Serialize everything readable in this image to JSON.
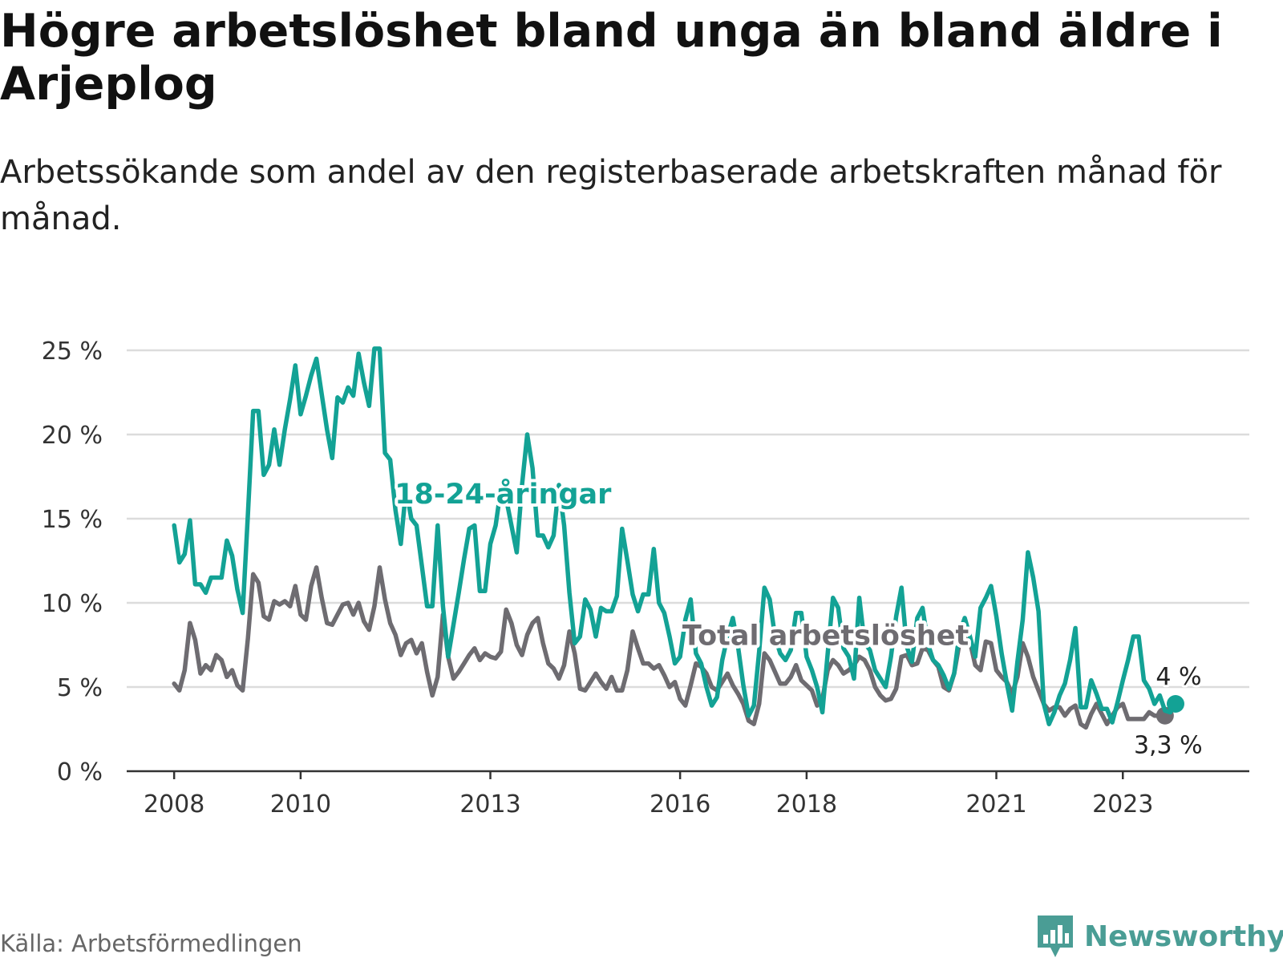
{
  "title": "Högre arbetslöshet bland unga än bland äldre i Arjeplog",
  "subtitle": "Arbetssökande som andel av den registerbaserade arbetskraften månad för månad.",
  "source": "Källa: Arbetsförmedlingen",
  "brand": {
    "name": "Newsworthy",
    "icon": "bar-chart-icon",
    "color": "#4a9d95"
  },
  "colors": {
    "youth": "#13a295",
    "total": "#6e6c71",
    "grid": "#dcdcdc",
    "axis": "#333333"
  },
  "chart_data": {
    "type": "line",
    "title": "Högre arbetslöshet bland unga än bland äldre i Arjeplog",
    "xlabel": "",
    "ylabel": "",
    "x_start": 2008.0,
    "x_step_months": 1,
    "xlim": [
      2007.25,
      2025.0
    ],
    "ylim": [
      0,
      25
    ],
    "y_ticks": [
      0,
      5,
      10,
      15,
      20,
      25
    ],
    "y_tick_labels": [
      "0 %",
      "5 %",
      "10 %",
      "15 %",
      "20 %",
      "25 %"
    ],
    "x_ticks": [
      2008,
      2010,
      2013,
      2016,
      2018,
      2021,
      2023
    ],
    "x_tick_labels": [
      "2008",
      "2010",
      "2013",
      "2016",
      "2018",
      "2021",
      "2023"
    ],
    "grid": true,
    "series": [
      {
        "name": "18-24-åringar",
        "label": "18-24-åringar",
        "color_key": "youth",
        "label_x": 2013.2,
        "label_y": 15.9,
        "values": [
          14.6,
          12.4,
          12.9,
          14.9,
          11.1,
          11.1,
          10.6,
          11.5,
          11.5,
          11.5,
          13.7,
          12.8,
          10.8,
          9.4,
          15.3,
          21.4,
          21.4,
          17.6,
          18.2,
          20.3,
          18.2,
          20.3,
          22.1,
          24.1,
          21.2,
          22.3,
          23.5,
          24.5,
          22.4,
          20.3,
          18.6,
          22.2,
          21.9,
          22.8,
          22.3,
          24.8,
          23.1,
          21.7,
          25.1,
          25.1,
          18.9,
          18.5,
          15.5,
          13.5,
          16.8,
          15.0,
          14.6,
          12.2,
          9.8,
          9.8,
          14.6,
          9.8,
          6.8,
          8.7,
          10.6,
          12.6,
          14.4,
          14.6,
          10.7,
          10.7,
          13.5,
          14.6,
          16.8,
          16.2,
          14.6,
          13.0,
          17.0,
          20.0,
          18.0,
          14.0,
          14.0,
          13.3,
          14.0,
          17.0,
          14.6,
          10.6,
          7.6,
          8.0,
          10.2,
          9.6,
          8.0,
          9.7,
          9.5,
          9.5,
          10.4,
          14.4,
          12.5,
          10.5,
          9.5,
          10.5,
          10.5,
          13.2,
          10.0,
          9.4,
          8.0,
          6.4,
          6.8,
          9.0,
          10.2,
          7.0,
          6.4,
          5.0,
          3.9,
          4.4,
          6.6,
          8.0,
          9.1,
          7.4,
          5.1,
          3.3,
          3.9,
          7.1,
          10.9,
          10.2,
          8.0,
          7.0,
          6.6,
          7.2,
          9.4,
          9.4,
          6.8,
          6.0,
          5.0,
          3.5,
          7.0,
          10.3,
          9.7,
          7.3,
          6.8,
          5.5,
          10.3,
          7.6,
          7.2,
          6.0,
          5.5,
          5.0,
          6.8,
          9.2,
          10.9,
          7.4,
          6.5,
          9.1,
          9.7,
          7.6,
          6.6,
          6.3,
          5.7,
          4.9,
          5.8,
          8.2,
          9.1,
          8.0,
          6.8,
          9.7,
          10.3,
          11.0,
          9.2,
          7.0,
          5.2,
          3.6,
          6.5,
          9.0,
          13.0,
          11.5,
          9.5,
          4.0,
          2.8,
          3.5,
          4.5,
          5.2,
          6.6,
          8.5,
          3.8,
          3.8,
          5.4,
          4.6,
          3.7,
          3.7,
          2.9,
          4.1,
          5.4,
          6.6,
          8.0,
          8.0,
          5.4,
          4.9,
          4.0,
          4.5,
          3.6,
          3.5,
          4.0
        ]
      },
      {
        "name": "Total arbetslöshet",
        "label": "Total arbetslöshet",
        "color_key": "total",
        "label_x": 2018.3,
        "label_y": 7.5,
        "values": [
          5.2,
          4.8,
          6.0,
          8.8,
          7.8,
          5.8,
          6.3,
          6.0,
          6.9,
          6.6,
          5.6,
          6.0,
          5.1,
          4.8,
          7.9,
          11.7,
          11.2,
          9.2,
          9.0,
          10.1,
          9.9,
          10.1,
          9.8,
          11.0,
          9.3,
          9.0,
          11.0,
          12.1,
          10.3,
          8.8,
          8.7,
          9.3,
          9.9,
          10.0,
          9.3,
          10.0,
          8.9,
          8.4,
          9.8,
          12.1,
          10.2,
          8.8,
          8.1,
          6.9,
          7.6,
          7.8,
          7.0,
          7.6,
          5.9,
          4.5,
          5.6,
          9.3,
          6.8,
          5.5,
          5.9,
          6.4,
          6.9,
          7.3,
          6.6,
          7.0,
          6.8,
          6.7,
          7.1,
          9.6,
          8.8,
          7.5,
          6.9,
          8.1,
          8.8,
          9.1,
          7.6,
          6.4,
          6.1,
          5.5,
          6.3,
          8.3,
          7.0,
          4.9,
          4.8,
          5.3,
          5.8,
          5.3,
          4.9,
          5.6,
          4.8,
          4.8,
          6.0,
          8.3,
          7.3,
          6.4,
          6.4,
          6.1,
          6.3,
          5.7,
          5.0,
          5.3,
          4.3,
          3.9,
          5.1,
          6.4,
          6.2,
          5.8,
          5.0,
          4.8,
          5.3,
          5.8,
          5.1,
          4.6,
          4.0,
          3.0,
          2.8,
          4.0,
          7.0,
          6.6,
          5.9,
          5.2,
          5.2,
          5.6,
          6.3,
          5.4,
          5.1,
          4.8,
          3.9,
          4.3,
          6.0,
          6.6,
          6.3,
          5.8,
          6.0,
          6.3,
          6.8,
          6.6,
          6.0,
          5.0,
          4.5,
          4.2,
          4.3,
          4.9,
          6.8,
          6.9,
          6.3,
          6.4,
          7.3,
          7.2,
          6.6,
          6.2,
          5.0,
          4.8,
          5.8,
          7.6,
          7.9,
          7.7,
          6.3,
          6.0,
          7.7,
          7.6,
          6.0,
          5.6,
          5.3,
          4.6,
          5.6,
          7.6,
          6.8,
          5.6,
          4.8,
          4.0,
          3.6,
          3.8,
          3.8,
          3.3,
          3.7,
          3.9,
          2.8,
          2.6,
          3.4,
          4.0,
          3.4,
          2.8,
          3.3,
          3.8,
          4.0,
          3.1,
          3.1,
          3.1,
          3.1,
          3.5,
          3.3,
          3.3,
          3.3
        ]
      }
    ],
    "end_labels": [
      {
        "series": "18-24-åringar",
        "text": "4 %"
      },
      {
        "series": "Total arbetslöshet",
        "text": "3,3 %"
      }
    ]
  }
}
